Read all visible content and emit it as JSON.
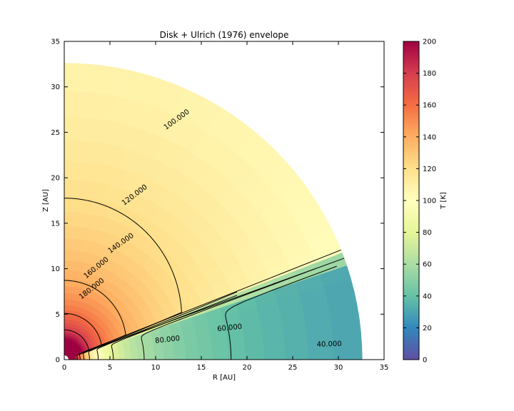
{
  "chart_data": {
    "type": "heatmap",
    "title": "Disk + Ulrich (1976) envelope",
    "xlabel": "R [AU]",
    "ylabel": "Z [AU]",
    "xlim": [
      0,
      35
    ],
    "ylim": [
      0,
      35
    ],
    "xticks": [
      "0",
      "5",
      "10",
      "15",
      "20",
      "25",
      "30",
      "35"
    ],
    "yticks": [
      "0",
      "5",
      "10",
      "15",
      "20",
      "25",
      "30",
      "35"
    ],
    "colorbar": {
      "label": "T [K]",
      "range": [
        0,
        200
      ],
      "ticks": [
        "0",
        "20",
        "40",
        "60",
        "80",
        "100",
        "120",
        "140",
        "160",
        "180",
        "200"
      ],
      "colormap": "Spectral_r"
    },
    "domain": {
      "r_inner": 0.5,
      "r_outer": 32.6,
      "theta_deg_min": 0,
      "theta_deg_max": 90
    },
    "disk_surface_angle_deg": 22,
    "contour_labels": [
      {
        "text": "180.000",
        "x": 3.0,
        "y": 7.8
      },
      {
        "text": "160.000",
        "x": 3.5,
        "y": 10.1
      },
      {
        "text": "140.000",
        "x": 6.2,
        "y": 12.8
      },
      {
        "text": "120.000",
        "x": 7.7,
        "y": 18.1
      },
      {
        "text": "100.000",
        "x": 12.3,
        "y": 26.4
      },
      {
        "text": "80.000",
        "x": 11.3,
        "y": 2.2
      },
      {
        "text": "60.000",
        "x": 18.1,
        "y": 3.5
      },
      {
        "text": "40.000",
        "x": 29.0,
        "y": 1.7
      }
    ]
  }
}
